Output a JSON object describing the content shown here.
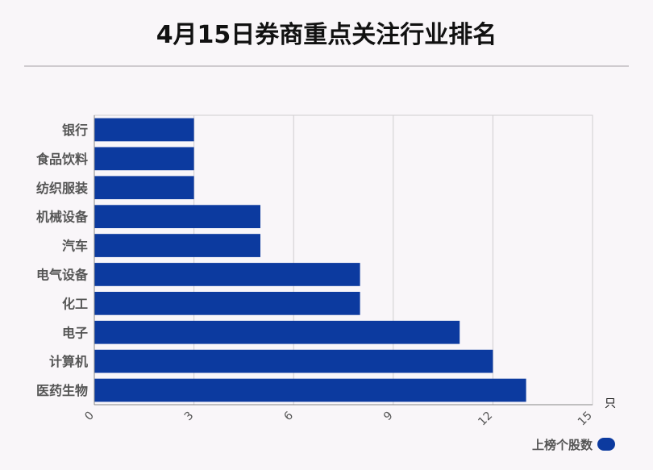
{
  "page": {
    "title": "4月15日券商重点关注行业排名"
  },
  "legend": {
    "label": "上榜个股数",
    "color": "#0c3a9f"
  },
  "chart_data": {
    "type": "bar",
    "orientation": "horizontal",
    "title": "4月15日券商重点关注行业排名",
    "categories": [
      "银行",
      "食品饮料",
      "纺织服装",
      "机械设备",
      "汽车",
      "电气设备",
      "化工",
      "电子",
      "计算机",
      "医药生物"
    ],
    "series": [
      {
        "name": "上榜个股数",
        "values": [
          3,
          3,
          3,
          5,
          5,
          8,
          8,
          11,
          12,
          13
        ]
      }
    ],
    "xlim": [
      0,
      15
    ],
    "xticks": [
      0,
      3,
      6,
      9,
      12,
      15
    ],
    "xunit": "只",
    "grid": true,
    "legend_position": "bottom-right",
    "bar_color": "#0c3a9f"
  }
}
